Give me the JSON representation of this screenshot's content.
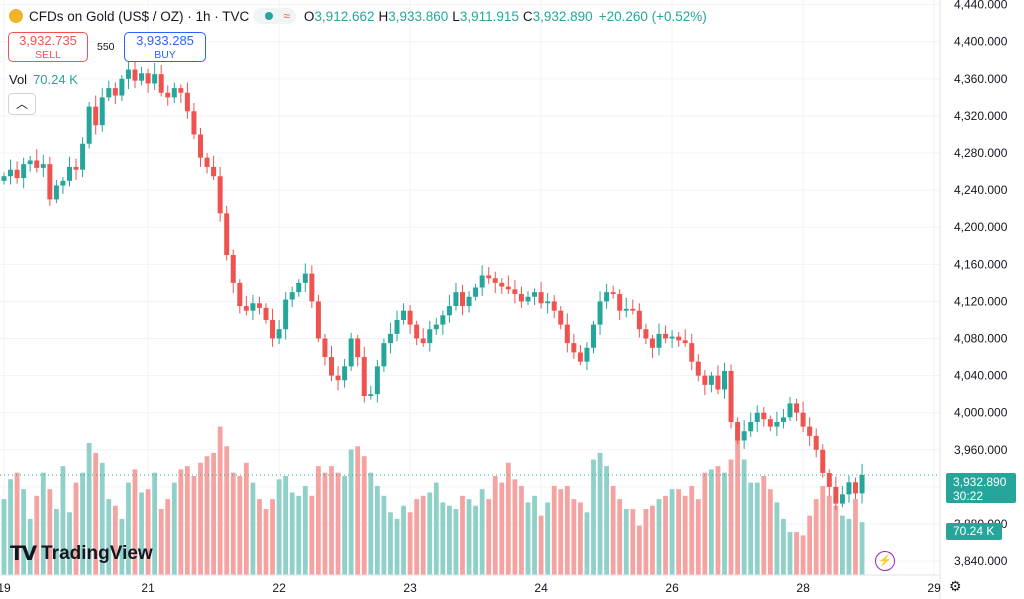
{
  "header": {
    "symbol_title": "CFDs on Gold (US$ / OZ) · 1h · TVC",
    "o_label": "O",
    "o_value": "3,912.662",
    "h_label": "H",
    "h_value": "3,933.860",
    "l_label": "L",
    "l_value": "3,911.915",
    "c_label": "C",
    "c_value": "3,932.890",
    "change": "+20.260 (+0.52%)"
  },
  "trade": {
    "sell_price": "3,932.735",
    "sell_label": "SELL",
    "spread": "550",
    "buy_price": "3,933.285",
    "buy_label": "BUY"
  },
  "volume_legend": {
    "label": "Vol",
    "value": "70.24 K"
  },
  "branding": {
    "logo_text": "TradingView"
  },
  "price_tag": {
    "price": "3,932.890",
    "countdown": "30:22"
  },
  "vol_tag": "70.24 K",
  "colors": {
    "up": "#26a69a",
    "down": "#ef5350",
    "vol_up": "#8fd0c8",
    "vol_down": "#f5a3a1",
    "grid": "#f0f3fa"
  },
  "icons": [
    "gold-coin-icon",
    "market-status-dot-icon",
    "wave-icon",
    "chevron-up-icon",
    "flash-icon",
    "settings-icon"
  ],
  "chart_data": {
    "type": "candlestick",
    "price_axis": {
      "range": [
        3825,
        4445
      ],
      "ticks": [
        3840,
        3880,
        3920,
        3960,
        4000,
        4040,
        4080,
        4120,
        4160,
        4200,
        4240,
        4280,
        4320,
        4360,
        4400,
        4440
      ],
      "tick_labels": [
        "3,840.000",
        "3,880.000",
        "3,920.000",
        "3,960.000",
        "4,000.000",
        "4,040.000",
        "4,080.000",
        "4,120.000",
        "4,160.000",
        "4,200.000",
        "4,240.000",
        "4,280.000",
        "4,320.000",
        "4,360.000",
        "4,400.000",
        "4,440.000"
      ]
    },
    "time_axis": {
      "labels": [
        "19",
        "21",
        "22",
        "23",
        "24",
        "26",
        "28",
        "29"
      ],
      "label_bar_index": [
        0,
        22,
        42,
        62,
        82,
        102,
        122,
        142
      ]
    },
    "grid": true,
    "last_price": 3932.89,
    "closes": [
      4255,
      4262,
      4253,
      4268,
      4272,
      4264,
      4268,
      4230,
      4245,
      4250,
      4265,
      4262,
      4290,
      4330,
      4310,
      4340,
      4350,
      4342,
      4360,
      4370,
      4358,
      4366,
      4355,
      4365,
      4345,
      4340,
      4350,
      4345,
      4325,
      4300,
      4275,
      4265,
      4255,
      4215,
      4170,
      4140,
      4115,
      4110,
      4118,
      4113,
      4100,
      4080,
      4090,
      4122,
      4130,
      4140,
      4150,
      4120,
      4080,
      4060,
      4040,
      4035,
      4050,
      4080,
      4060,
      4018,
      4020,
      4050,
      4075,
      4085,
      4100,
      4110,
      4095,
      4080,
      4075,
      4090,
      4095,
      4105,
      4115,
      4130,
      4115,
      4125,
      4135,
      4148,
      4145,
      4140,
      4136,
      4133,
      4128,
      4120,
      4125,
      4130,
      4118,
      4120,
      4110,
      4095,
      4075,
      4065,
      4055,
      4070,
      4095,
      4120,
      4130,
      4128,
      4110,
      4112,
      4110,
      4090,
      4080,
      4070,
      4085,
      4080,
      4082,
      4078,
      4075,
      4055,
      4040,
      4030,
      4040,
      4025,
      4045,
      3990,
      3970,
      3980,
      3990,
      4000,
      3993,
      3985,
      3990,
      3995,
      4010,
      4000,
      3985,
      3975,
      3960,
      3935,
      3920,
      3902,
      3912,
      3925,
      3913,
      3932.89
    ],
    "volumes": [
      23,
      29,
      31,
      26,
      17,
      24,
      31,
      26,
      20,
      33,
      19,
      28,
      31,
      40,
      37,
      34,
      23,
      21,
      17,
      28,
      32,
      25,
      26,
      31,
      20,
      23,
      28,
      32,
      33,
      30,
      34,
      36,
      37,
      45,
      39,
      31,
      30,
      34,
      28,
      23,
      20,
      23,
      29,
      30,
      25,
      24,
      27,
      24,
      33,
      31,
      33,
      31,
      30,
      38,
      39,
      36,
      31,
      27,
      24,
      19,
      17,
      21,
      19,
      23,
      24,
      25,
      28,
      22,
      21,
      20,
      24,
      23,
      21,
      26,
      23,
      30,
      28,
      34,
      29,
      27,
      22,
      24,
      18,
      22,
      27,
      26,
      27,
      23,
      22,
      19,
      35,
      37,
      33,
      27,
      23,
      20,
      20,
      15,
      20,
      21,
      23,
      24,
      26,
      26,
      24,
      27,
      23,
      31,
      32,
      33,
      31,
      35,
      41,
      35,
      28,
      28,
      30,
      26,
      22,
      17,
      13,
      13,
      12,
      18,
      23,
      27,
      24,
      21,
      18,
      17,
      23,
      16
    ]
  }
}
